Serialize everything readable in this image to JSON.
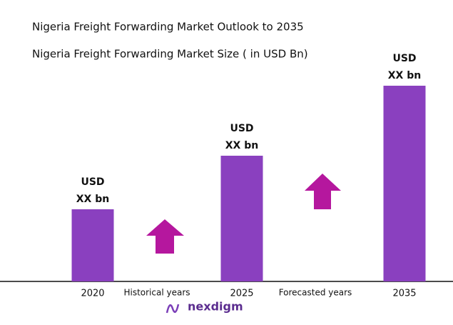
{
  "chart_data": {
    "type": "bar",
    "title": "Nigeria Freight Forwarding Market Outlook to 2035",
    "subtitle": "Nigeria Freight Forwarding Market Size ( in USD Bn)",
    "categories": [
      "2020",
      "2025",
      "2035"
    ],
    "values": [
      101,
      176,
      274
    ],
    "value_labels": [
      [
        "USD",
        "XX bn"
      ],
      [
        "USD",
        "XX bn"
      ],
      [
        "USD",
        "XX bn"
      ]
    ],
    "color": "#8a40bf",
    "ylim": [
      0,
      300
    ],
    "period_labels": [
      "Historical years",
      "Forecasted years"
    ],
    "brand": "nexdigm"
  }
}
